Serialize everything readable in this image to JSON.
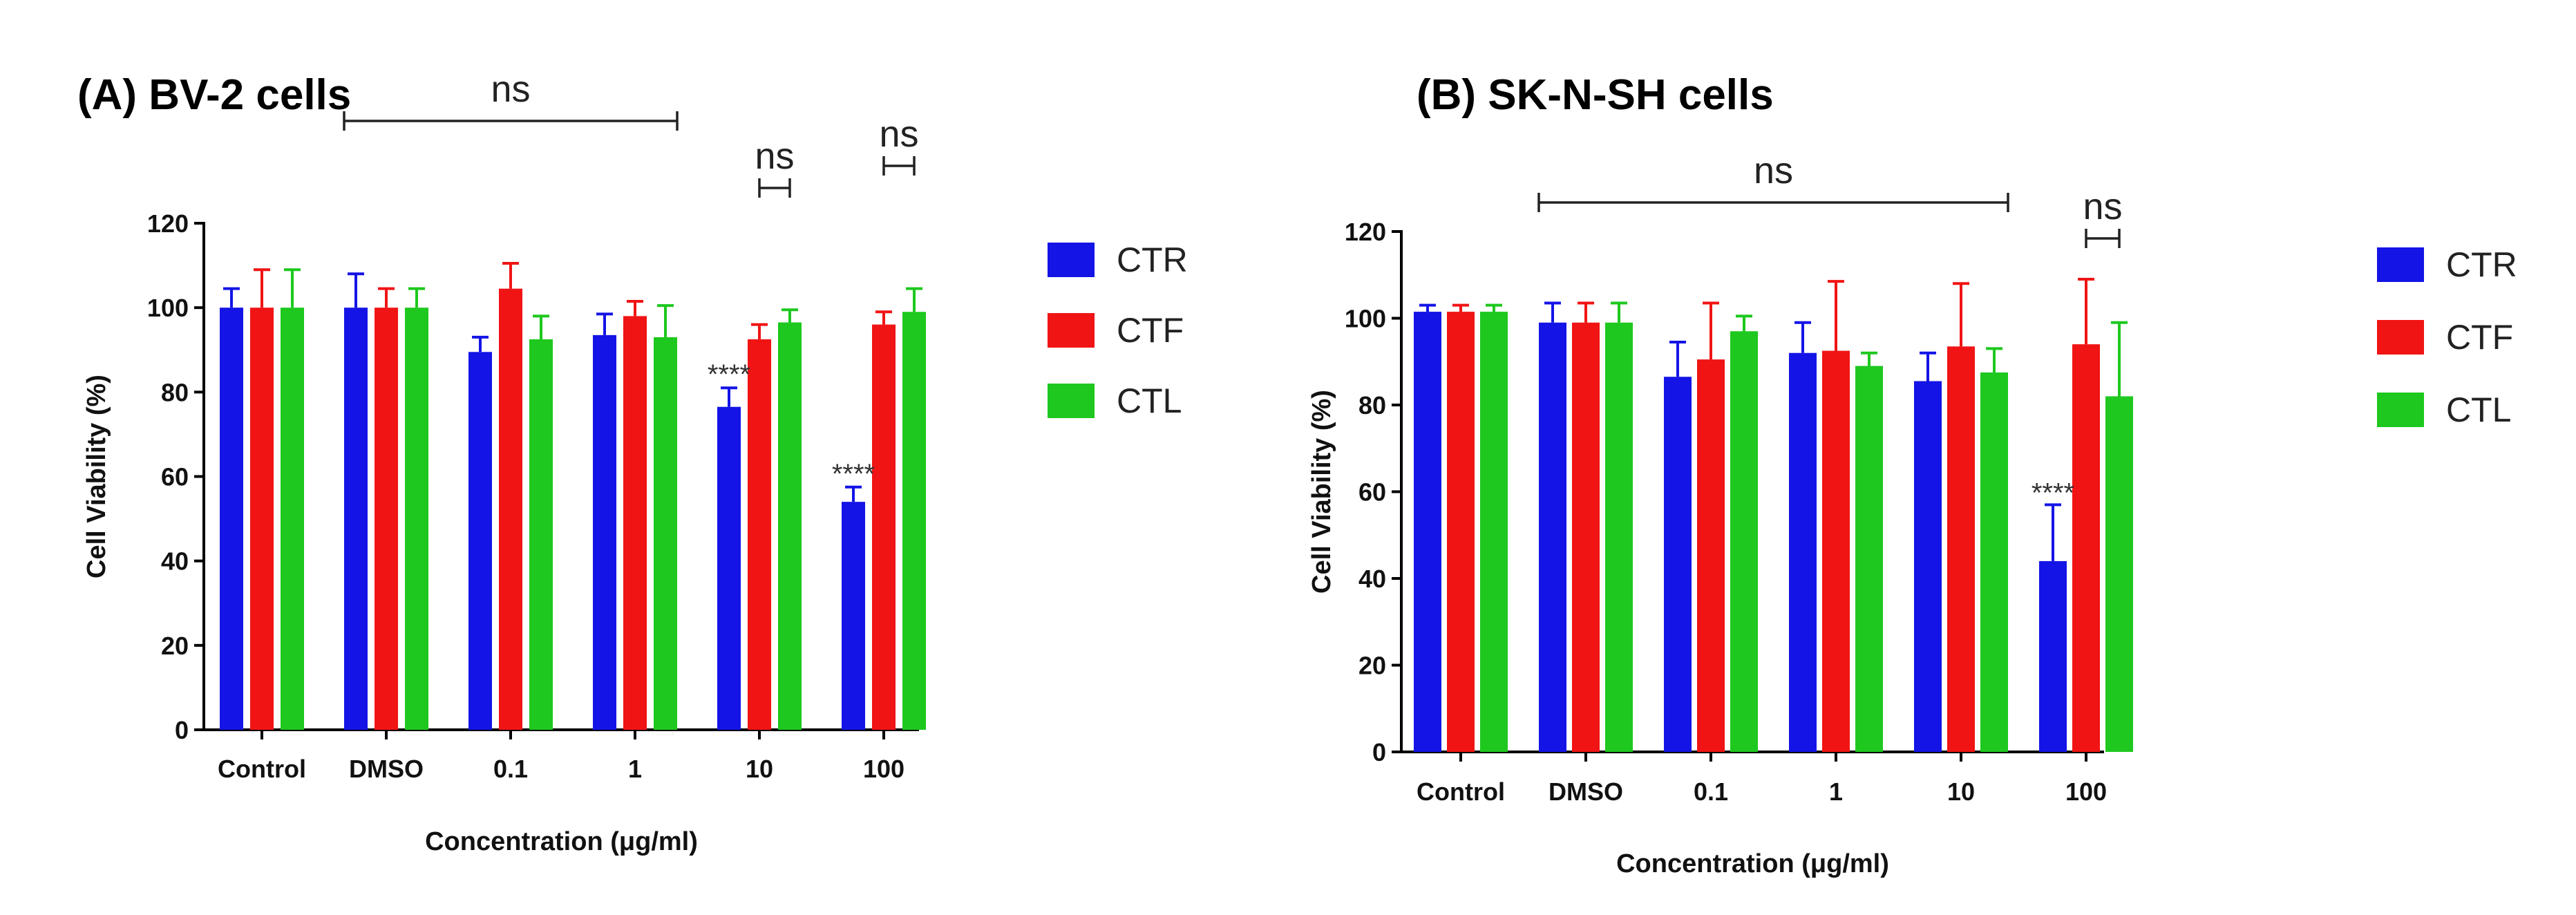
{
  "colors": {
    "CTR": "#1414e6",
    "CTF": "#f01414",
    "CTL": "#1ec81e",
    "axis": "#000000",
    "bracket": "#222222"
  },
  "chart_data": [
    {
      "type": "bar",
      "title": "(A) BV-2 cells",
      "xlabel": "Concentration (μg/ml)",
      "ylabel": "Cell Viability (%)",
      "ylim": [
        0,
        120
      ],
      "yticks": [
        "0",
        "20",
        "40",
        "60",
        "80",
        "100",
        "120"
      ],
      "categories": [
        "Control",
        "DMSO",
        "0.1",
        "1",
        "10",
        "100"
      ],
      "legend_position": "right",
      "series": [
        {
          "name": "CTR",
          "values": [
            100,
            100,
            89.5,
            93.5,
            76.5,
            54
          ],
          "errors": [
            4.5,
            8,
            3.5,
            5,
            4.5,
            3.5
          ]
        },
        {
          "name": "CTF",
          "values": [
            100,
            100,
            104.5,
            98,
            92.5,
            96
          ],
          "errors": [
            9,
            4.5,
            6,
            3.5,
            3.5,
            3
          ]
        },
        {
          "name": "CTL",
          "values": [
            100,
            100,
            92.5,
            93,
            96.5,
            99
          ],
          "errors": [
            9,
            4.5,
            5.5,
            7.5,
            3,
            5.5
          ]
        }
      ],
      "annotations": {
        "ns_wide": {
          "label": "ns",
          "from_category": 1,
          "to_category": 3
        },
        "ns_10": {
          "label": "ns",
          "category": 4
        },
        "ns_100": {
          "label": "ns",
          "category": 5
        },
        "stars_10": {
          "label": "****",
          "category": 4
        },
        "stars_100": {
          "label": "****",
          "category": 5
        }
      }
    },
    {
      "type": "bar",
      "title": "(B) SK-N-SH cells",
      "xlabel": "Concentration (μg/ml)",
      "ylabel": "Cell Viability (%)",
      "ylim": [
        0,
        120
      ],
      "yticks": [
        "0",
        "20",
        "40",
        "60",
        "80",
        "100",
        "120"
      ],
      "categories": [
        "Control",
        "DMSO",
        "0.1",
        "1",
        "10",
        "100"
      ],
      "legend_position": "right",
      "series": [
        {
          "name": "CTR",
          "values": [
            101.5,
            99,
            86.5,
            92,
            85.5,
            44
          ],
          "errors": [
            1.5,
            4.5,
            8,
            7,
            6.5,
            13
          ]
        },
        {
          "name": "CTF",
          "values": [
            101.5,
            99,
            90.5,
            92.5,
            93.5,
            94
          ],
          "errors": [
            1.5,
            4.5,
            13,
            16,
            14.5,
            15
          ]
        },
        {
          "name": "CTL",
          "values": [
            101.5,
            99,
            97,
            89,
            87.5,
            82
          ],
          "errors": [
            1.5,
            4.5,
            3.5,
            3,
            5.5,
            17
          ]
        }
      ],
      "annotations": {
        "ns_wide": {
          "label": "ns",
          "from_category": 1,
          "to_category": 4
        },
        "ns_100": {
          "label": "ns",
          "category": 5
        },
        "stars_100": {
          "label": "****",
          "category": 5
        }
      }
    }
  ]
}
